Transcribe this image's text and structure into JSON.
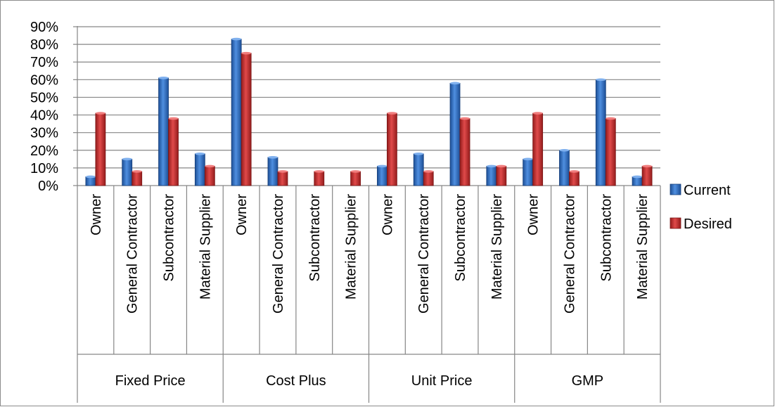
{
  "chart_data": {
    "type": "bar",
    "group_labels": [
      "Fixed Price",
      "Cost Plus",
      "Unit Price",
      "GMP"
    ],
    "subcategories": [
      "Owner",
      "General Contractor",
      "Subcontractor",
      "Material Supplier"
    ],
    "categories": [
      "Fixed Price / Owner",
      "Fixed Price / General Contractor",
      "Fixed Price / Subcontractor",
      "Fixed Price / Material Supplier",
      "Cost Plus / Owner",
      "Cost Plus / General Contractor",
      "Cost Plus / Subcontractor",
      "Cost Plus / Material Supplier",
      "Unit Price / Owner",
      "Unit Price / General Contractor",
      "Unit Price / Subcontractor",
      "Unit Price / Material Supplier",
      "GMP / Owner",
      "GMP / General Contractor",
      "GMP / Subcontractor",
      "GMP / Material Supplier"
    ],
    "series": [
      {
        "name": "Current",
        "color": "#2f6ec2",
        "values": [
          5,
          15,
          61,
          18,
          83,
          16,
          0,
          0,
          11,
          18,
          58,
          11,
          15,
          20,
          60,
          5
        ]
      },
      {
        "name": "Desired",
        "color": "#c62a2a",
        "values": [
          41,
          8,
          38,
          11,
          75,
          8,
          8,
          8,
          41,
          8,
          38,
          11,
          41,
          8,
          38,
          11
        ]
      }
    ],
    "y_ticks": [
      "0%",
      "10%",
      "20%",
      "30%",
      "40%",
      "50%",
      "60%",
      "70%",
      "80%",
      "90%"
    ],
    "ylim": [
      0,
      90
    ],
    "y_unit": "%",
    "grid": true,
    "legend_position": "right",
    "title": "",
    "xlabel": "",
    "ylabel": ""
  }
}
